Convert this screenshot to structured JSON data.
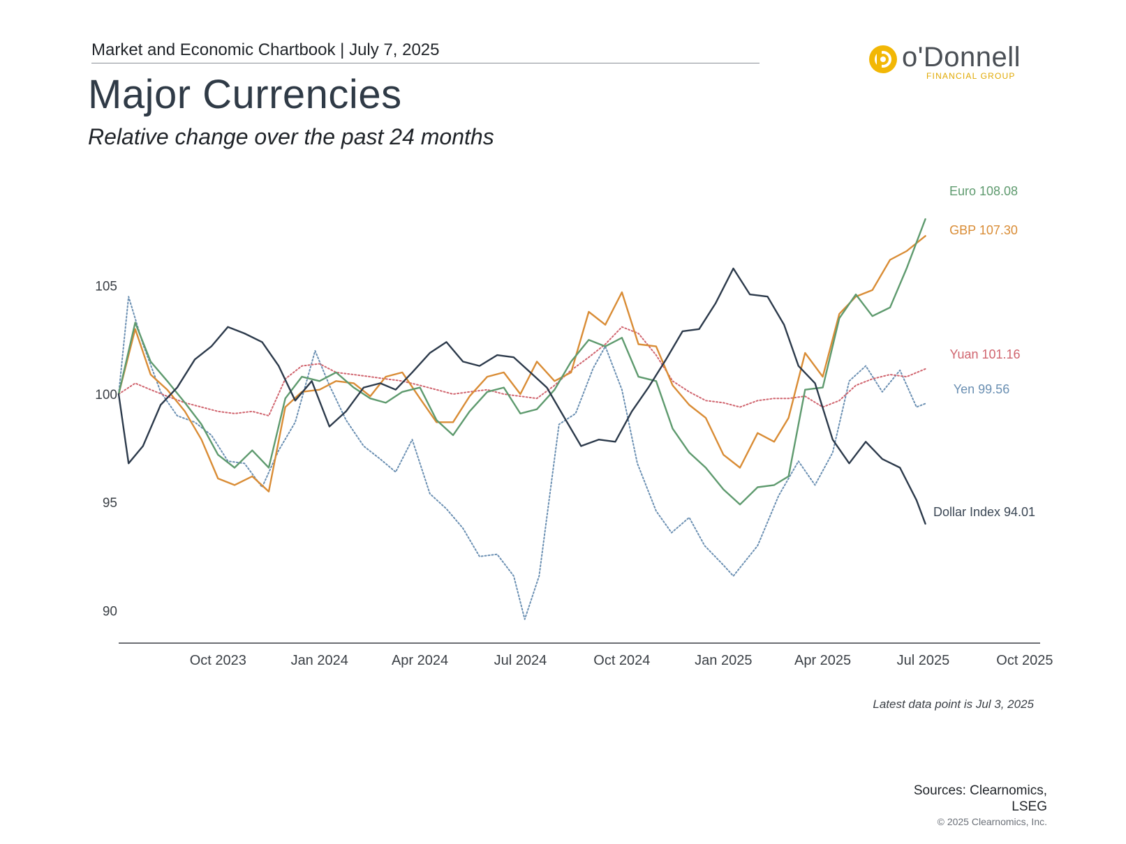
{
  "header": {
    "chartbook": "Market and Economic Chartbook | July 7, 2025",
    "title": "Major Currencies",
    "subtitle": "Relative change over the past 24 months"
  },
  "logo": {
    "word": "o'Donnell",
    "sub": "FINANCIAL GROUP"
  },
  "footer": {
    "note": "Latest data point is Jul 3, 2025",
    "sources_line1": "Sources: Clearnomics,",
    "sources_line2": "LSEG",
    "copyright": "© 2025 Clearnomics, Inc."
  },
  "colors": {
    "dollar": "#2c3a4b",
    "euro": "#5e9a6e",
    "gbp": "#d98c35",
    "yuan": "#d0646e",
    "yen": "#6a8fb2",
    "axis": "#3a3f45",
    "logo_ring": "#f2b705"
  },
  "chart_data": {
    "type": "line",
    "xlabel": "",
    "ylabel": "",
    "ylim": [
      88.5,
      109.5
    ],
    "xlim": [
      "2023-07-03",
      "2025-10-15"
    ],
    "yticks": [
      90,
      95,
      100,
      105
    ],
    "xticks": [
      {
        "date": "2023-10-01",
        "label": "Oct 2023"
      },
      {
        "date": "2024-01-01",
        "label": "Jan 2024"
      },
      {
        "date": "2024-04-01",
        "label": "Apr 2024"
      },
      {
        "date": "2024-07-01",
        "label": "Jul 2024"
      },
      {
        "date": "2024-10-01",
        "label": "Oct 2024"
      },
      {
        "date": "2025-01-01",
        "label": "Jan 2025"
      },
      {
        "date": "2025-04-01",
        "label": "Apr 2025"
      },
      {
        "date": "2025-07-01",
        "label": "Jul 2025"
      },
      {
        "date": "2025-10-01",
        "label": "Oct 2025"
      }
    ],
    "grid": false,
    "legend": "right-end labels",
    "series": [
      {
        "name": "Euro",
        "end_label": "Euro 108.08",
        "style": "solid",
        "points": [
          [
            "2023-07-03",
            100.0
          ],
          [
            "2023-07-18",
            103.3
          ],
          [
            "2023-08-01",
            101.5
          ],
          [
            "2023-08-16",
            100.6
          ],
          [
            "2023-09-01",
            99.6
          ],
          [
            "2023-09-16",
            98.6
          ],
          [
            "2023-10-01",
            97.2
          ],
          [
            "2023-10-16",
            96.6
          ],
          [
            "2023-11-01",
            97.4
          ],
          [
            "2023-11-16",
            96.6
          ],
          [
            "2023-12-01",
            99.8
          ],
          [
            "2023-12-16",
            100.8
          ],
          [
            "2024-01-01",
            100.6
          ],
          [
            "2024-01-16",
            101.0
          ],
          [
            "2024-02-01",
            100.3
          ],
          [
            "2024-02-16",
            99.8
          ],
          [
            "2024-03-01",
            99.6
          ],
          [
            "2024-03-16",
            100.1
          ],
          [
            "2024-04-01",
            100.3
          ],
          [
            "2024-04-16",
            98.8
          ],
          [
            "2024-05-01",
            98.1
          ],
          [
            "2024-05-16",
            99.2
          ],
          [
            "2024-06-01",
            100.1
          ],
          [
            "2024-06-16",
            100.3
          ],
          [
            "2024-07-01",
            99.1
          ],
          [
            "2024-07-16",
            99.3
          ],
          [
            "2024-08-01",
            100.2
          ],
          [
            "2024-08-16",
            101.5
          ],
          [
            "2024-09-01",
            102.5
          ],
          [
            "2024-09-16",
            102.2
          ],
          [
            "2024-10-01",
            102.6
          ],
          [
            "2024-10-16",
            100.8
          ],
          [
            "2024-11-01",
            100.6
          ],
          [
            "2024-11-16",
            98.4
          ],
          [
            "2024-12-01",
            97.3
          ],
          [
            "2024-12-16",
            96.6
          ],
          [
            "2025-01-01",
            95.6
          ],
          [
            "2025-01-16",
            94.9
          ],
          [
            "2025-02-01",
            95.7
          ],
          [
            "2025-02-16",
            95.8
          ],
          [
            "2025-03-01",
            96.2
          ],
          [
            "2025-03-16",
            100.2
          ],
          [
            "2025-04-01",
            100.3
          ],
          [
            "2025-04-16",
            103.5
          ],
          [
            "2025-05-01",
            104.6
          ],
          [
            "2025-05-16",
            103.6
          ],
          [
            "2025-06-01",
            104.0
          ],
          [
            "2025-06-16",
            105.8
          ],
          [
            "2025-07-03",
            108.08
          ]
        ]
      },
      {
        "name": "GBP",
        "end_label": "GBP 107.30",
        "style": "solid",
        "points": [
          [
            "2023-07-03",
            100.0
          ],
          [
            "2023-07-18",
            103.0
          ],
          [
            "2023-08-01",
            100.9
          ],
          [
            "2023-08-16",
            100.2
          ],
          [
            "2023-09-01",
            99.2
          ],
          [
            "2023-09-16",
            97.9
          ],
          [
            "2023-10-01",
            96.1
          ],
          [
            "2023-10-16",
            95.8
          ],
          [
            "2023-11-01",
            96.2
          ],
          [
            "2023-11-16",
            95.5
          ],
          [
            "2023-12-01",
            99.4
          ],
          [
            "2023-12-16",
            100.1
          ],
          [
            "2024-01-01",
            100.2
          ],
          [
            "2024-01-16",
            100.6
          ],
          [
            "2024-02-01",
            100.5
          ],
          [
            "2024-02-16",
            99.9
          ],
          [
            "2024-03-01",
            100.8
          ],
          [
            "2024-03-16",
            101.0
          ],
          [
            "2024-04-01",
            99.8
          ],
          [
            "2024-04-16",
            98.7
          ],
          [
            "2024-05-01",
            98.7
          ],
          [
            "2024-05-16",
            99.9
          ],
          [
            "2024-06-01",
            100.8
          ],
          [
            "2024-06-16",
            101.0
          ],
          [
            "2024-07-01",
            100.0
          ],
          [
            "2024-07-16",
            101.5
          ],
          [
            "2024-08-01",
            100.6
          ],
          [
            "2024-08-16",
            101.0
          ],
          [
            "2024-09-01",
            103.8
          ],
          [
            "2024-09-16",
            103.2
          ],
          [
            "2024-10-01",
            104.7
          ],
          [
            "2024-10-16",
            102.3
          ],
          [
            "2024-11-01",
            102.2
          ],
          [
            "2024-11-16",
            100.4
          ],
          [
            "2024-12-01",
            99.5
          ],
          [
            "2024-12-16",
            98.9
          ],
          [
            "2025-01-01",
            97.2
          ],
          [
            "2025-01-16",
            96.6
          ],
          [
            "2025-02-01",
            98.2
          ],
          [
            "2025-02-16",
            97.8
          ],
          [
            "2025-03-01",
            98.9
          ],
          [
            "2025-03-16",
            101.9
          ],
          [
            "2025-04-01",
            100.8
          ],
          [
            "2025-04-16",
            103.7
          ],
          [
            "2025-05-01",
            104.5
          ],
          [
            "2025-05-16",
            104.8
          ],
          [
            "2025-06-01",
            106.2
          ],
          [
            "2025-06-16",
            106.6
          ],
          [
            "2025-07-03",
            107.3
          ]
        ]
      },
      {
        "name": "Yuan",
        "end_label": "Yuan 101.16",
        "style": "dotted",
        "points": [
          [
            "2023-07-03",
            100.0
          ],
          [
            "2023-07-18",
            100.5
          ],
          [
            "2023-08-01",
            100.2
          ],
          [
            "2023-08-16",
            99.9
          ],
          [
            "2023-09-01",
            99.6
          ],
          [
            "2023-09-16",
            99.4
          ],
          [
            "2023-10-01",
            99.2
          ],
          [
            "2023-10-16",
            99.1
          ],
          [
            "2023-11-01",
            99.2
          ],
          [
            "2023-11-16",
            99.0
          ],
          [
            "2023-12-01",
            100.7
          ],
          [
            "2023-12-16",
            101.3
          ],
          [
            "2024-01-01",
            101.4
          ],
          [
            "2024-01-16",
            101.0
          ],
          [
            "2024-02-01",
            100.9
          ],
          [
            "2024-02-16",
            100.8
          ],
          [
            "2024-03-01",
            100.7
          ],
          [
            "2024-03-16",
            100.6
          ],
          [
            "2024-04-01",
            100.4
          ],
          [
            "2024-04-16",
            100.2
          ],
          [
            "2024-05-01",
            100.0
          ],
          [
            "2024-05-16",
            100.1
          ],
          [
            "2024-06-01",
            100.2
          ],
          [
            "2024-06-16",
            100.0
          ],
          [
            "2024-07-01",
            99.9
          ],
          [
            "2024-07-16",
            99.8
          ],
          [
            "2024-08-01",
            100.4
          ],
          [
            "2024-08-16",
            101.1
          ],
          [
            "2024-09-01",
            101.7
          ],
          [
            "2024-09-16",
            102.3
          ],
          [
            "2024-10-01",
            103.1
          ],
          [
            "2024-10-16",
            102.8
          ],
          [
            "2024-11-01",
            101.8
          ],
          [
            "2024-11-16",
            100.6
          ],
          [
            "2024-12-01",
            100.1
          ],
          [
            "2024-12-16",
            99.7
          ],
          [
            "2025-01-01",
            99.6
          ],
          [
            "2025-01-16",
            99.4
          ],
          [
            "2025-02-01",
            99.7
          ],
          [
            "2025-02-16",
            99.8
          ],
          [
            "2025-03-01",
            99.8
          ],
          [
            "2025-03-16",
            99.9
          ],
          [
            "2025-04-01",
            99.4
          ],
          [
            "2025-04-16",
            99.7
          ],
          [
            "2025-05-01",
            100.4
          ],
          [
            "2025-05-16",
            100.7
          ],
          [
            "2025-06-01",
            100.9
          ],
          [
            "2025-06-16",
            100.8
          ],
          [
            "2025-07-03",
            101.16
          ]
        ]
      },
      {
        "name": "Yen",
        "end_label": "Yen 99.56",
        "style": "dotted",
        "points": [
          [
            "2023-07-03",
            100.0
          ],
          [
            "2023-07-12",
            104.5
          ],
          [
            "2023-07-25",
            102.3
          ],
          [
            "2023-08-10",
            100.1
          ],
          [
            "2023-08-25",
            99.0
          ],
          [
            "2023-09-10",
            98.7
          ],
          [
            "2023-09-25",
            98.1
          ],
          [
            "2023-10-10",
            96.9
          ],
          [
            "2023-10-25",
            96.8
          ],
          [
            "2023-11-10",
            95.7
          ],
          [
            "2023-11-25",
            97.4
          ],
          [
            "2023-12-10",
            98.7
          ],
          [
            "2023-12-28",
            102.0
          ],
          [
            "2024-01-10",
            100.4
          ],
          [
            "2024-01-25",
            98.8
          ],
          [
            "2024-02-10",
            97.6
          ],
          [
            "2024-02-25",
            97.0
          ],
          [
            "2024-03-10",
            96.4
          ],
          [
            "2024-03-25",
            97.9
          ],
          [
            "2024-04-10",
            95.4
          ],
          [
            "2024-04-25",
            94.7
          ],
          [
            "2024-05-10",
            93.8
          ],
          [
            "2024-05-25",
            92.5
          ],
          [
            "2024-06-10",
            92.6
          ],
          [
            "2024-06-25",
            91.6
          ],
          [
            "2024-07-05",
            89.6
          ],
          [
            "2024-07-18",
            91.6
          ],
          [
            "2024-08-05",
            98.6
          ],
          [
            "2024-08-20",
            99.1
          ],
          [
            "2024-09-05",
            101.2
          ],
          [
            "2024-09-16",
            102.2
          ],
          [
            "2024-10-01",
            100.2
          ],
          [
            "2024-10-15",
            96.8
          ],
          [
            "2024-11-01",
            94.6
          ],
          [
            "2024-11-15",
            93.6
          ],
          [
            "2024-12-01",
            94.3
          ],
          [
            "2024-12-15",
            93.0
          ],
          [
            "2025-01-01",
            92.1
          ],
          [
            "2025-01-10",
            91.6
          ],
          [
            "2025-02-01",
            93.0
          ],
          [
            "2025-02-20",
            95.3
          ],
          [
            "2025-03-10",
            96.9
          ],
          [
            "2025-03-25",
            95.8
          ],
          [
            "2025-04-10",
            97.3
          ],
          [
            "2025-04-25",
            100.6
          ],
          [
            "2025-05-10",
            101.3
          ],
          [
            "2025-05-25",
            100.1
          ],
          [
            "2025-06-10",
            101.1
          ],
          [
            "2025-06-25",
            99.4
          ],
          [
            "2025-07-03",
            99.56
          ]
        ]
      },
      {
        "name": "Dollar Index",
        "end_label": "Dollar Index 94.01",
        "style": "solid",
        "points": [
          [
            "2023-07-03",
            100.0
          ],
          [
            "2023-07-12",
            96.8
          ],
          [
            "2023-07-25",
            97.6
          ],
          [
            "2023-08-10",
            99.5
          ],
          [
            "2023-08-25",
            100.3
          ],
          [
            "2023-09-10",
            101.6
          ],
          [
            "2023-09-25",
            102.2
          ],
          [
            "2023-10-10",
            103.1
          ],
          [
            "2023-10-25",
            102.8
          ],
          [
            "2023-11-10",
            102.4
          ],
          [
            "2023-11-25",
            101.3
          ],
          [
            "2023-12-10",
            99.7
          ],
          [
            "2023-12-25",
            100.6
          ],
          [
            "2024-01-10",
            98.5
          ],
          [
            "2024-01-25",
            99.2
          ],
          [
            "2024-02-10",
            100.3
          ],
          [
            "2024-02-25",
            100.5
          ],
          [
            "2024-03-10",
            100.2
          ],
          [
            "2024-03-25",
            101.0
          ],
          [
            "2024-04-10",
            101.9
          ],
          [
            "2024-04-25",
            102.4
          ],
          [
            "2024-05-10",
            101.5
          ],
          [
            "2024-05-25",
            101.3
          ],
          [
            "2024-06-10",
            101.8
          ],
          [
            "2024-06-25",
            101.7
          ],
          [
            "2024-07-10",
            101.0
          ],
          [
            "2024-07-25",
            100.3
          ],
          [
            "2024-08-10",
            98.9
          ],
          [
            "2024-08-25",
            97.6
          ],
          [
            "2024-09-10",
            97.9
          ],
          [
            "2024-09-25",
            97.8
          ],
          [
            "2024-10-10",
            99.2
          ],
          [
            "2024-10-25",
            100.3
          ],
          [
            "2024-11-10",
            101.6
          ],
          [
            "2024-11-25",
            102.9
          ],
          [
            "2024-12-10",
            103.0
          ],
          [
            "2024-12-25",
            104.2
          ],
          [
            "2025-01-10",
            105.8
          ],
          [
            "2025-01-25",
            104.6
          ],
          [
            "2025-02-10",
            104.5
          ],
          [
            "2025-02-25",
            103.2
          ],
          [
            "2025-03-10",
            101.3
          ],
          [
            "2025-03-25",
            100.5
          ],
          [
            "2025-04-10",
            97.9
          ],
          [
            "2025-04-25",
            96.8
          ],
          [
            "2025-05-10",
            97.8
          ],
          [
            "2025-05-25",
            97.0
          ],
          [
            "2025-06-10",
            96.6
          ],
          [
            "2025-06-25",
            95.1
          ],
          [
            "2025-07-03",
            94.01
          ]
        ]
      }
    ]
  }
}
